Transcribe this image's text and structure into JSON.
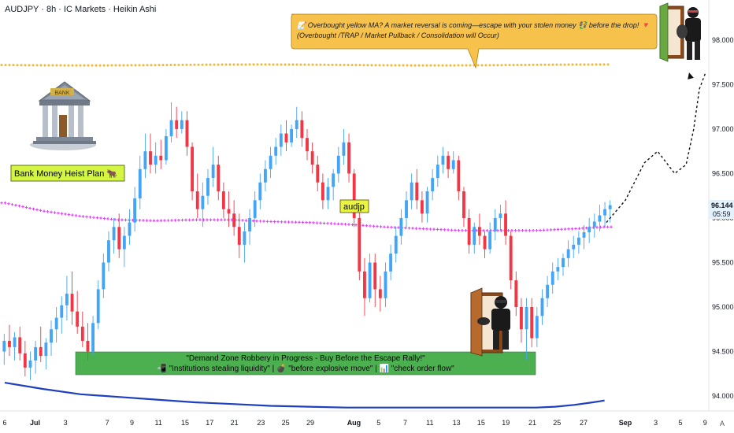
{
  "header": {
    "title": "AUDJPY · 8h · IC Markets · Heikin Ashi"
  },
  "colors": {
    "up": "#42a5f5",
    "down": "#f23645",
    "bubble_fill": "#f7c24c",
    "zone_fill": "#4caf50",
    "ma_yellow": "#f2b630",
    "ma_magenta": "#e040fb",
    "ma_blue": "#1e3fbf",
    "tag_fill": "#e9f542",
    "price_label": "#e3f2fd"
  },
  "annotations": {
    "bubble_line1": "📝 Overbought yellow MA? A market reversal is coming—escape with your stolen money 💱 before the drop! 🔻",
    "bubble_line2": "(Overbought /TRAP / Market Pullback / Consolidation will Occur)",
    "plan_label": "Bank Money Heist Plan 🐂",
    "tag_label": "audjp",
    "zone_line1": "\"Demand Zone Robbery in Progress - Buy Before the Escape Rally!\"",
    "zone_line2": "📲 \"Institutions stealing liquidity\" | 💣 \"before explosive move\" | 📊 \"check order flow\""
  },
  "price_label": {
    "price": "96.144",
    "countdown": "05:59"
  },
  "axis_corner": "A",
  "chart_data": {
    "type": "candlestick",
    "title": "AUDJPY · 8h · IC Markets · Heikin Ashi",
    "y_ticks": [
      "98.000",
      "97.500",
      "97.000",
      "96.500",
      "96.000",
      "95.500",
      "95.000",
      "94.500",
      "94.000"
    ],
    "y_tick_values": [
      98.0,
      97.5,
      97.0,
      96.5,
      96.0,
      95.5,
      95.0,
      94.5,
      94.0
    ],
    "ylim": [
      93.85,
      98.45
    ],
    "x_ticks": [
      {
        "label": "6",
        "day": 0,
        "bold": false
      },
      {
        "label": "Jul",
        "day": 1.6,
        "bold": true
      },
      {
        "label": "3",
        "day": 3.2,
        "bold": false
      },
      {
        "label": "7",
        "day": 5.4,
        "bold": false
      },
      {
        "label": "9",
        "day": 6.7,
        "bold": false
      },
      {
        "label": "11",
        "day": 8.1,
        "bold": false
      },
      {
        "label": "15",
        "day": 9.5,
        "bold": false
      },
      {
        "label": "17",
        "day": 10.8,
        "bold": false
      },
      {
        "label": "21",
        "day": 12.1,
        "bold": false
      },
      {
        "label": "23",
        "day": 13.5,
        "bold": false
      },
      {
        "label": "25",
        "day": 14.8,
        "bold": false
      },
      {
        "label": "29",
        "day": 16.1,
        "bold": false
      },
      {
        "label": "Aug",
        "day": 18.4,
        "bold": true
      },
      {
        "label": "5",
        "day": 19.7,
        "bold": false
      },
      {
        "label": "7",
        "day": 21.1,
        "bold": false
      },
      {
        "label": "11",
        "day": 22.4,
        "bold": false
      },
      {
        "label": "13",
        "day": 23.8,
        "bold": false
      },
      {
        "label": "15",
        "day": 25.1,
        "bold": false
      },
      {
        "label": "19",
        "day": 26.4,
        "bold": false
      },
      {
        "label": "21",
        "day": 27.8,
        "bold": false
      },
      {
        "label": "25",
        "day": 29.1,
        "bold": false
      },
      {
        "label": "27",
        "day": 30.5,
        "bold": false
      },
      {
        "label": "Sep",
        "day": 32.7,
        "bold": true
      },
      {
        "label": "3",
        "day": 34.3,
        "bold": false
      },
      {
        "label": "5",
        "day": 35.6,
        "bold": false
      },
      {
        "label": "9",
        "day": 36.9,
        "bold": false
      }
    ],
    "ma_yellow_level": 97.72,
    "ma_blue": [
      [
        0,
        94.15
      ],
      [
        2,
        94.08
      ],
      [
        4,
        94.02
      ],
      [
        6,
        93.99
      ],
      [
        8,
        93.96
      ],
      [
        10,
        93.93
      ],
      [
        12,
        93.91
      ],
      [
        14,
        93.89
      ],
      [
        16,
        93.88
      ],
      [
        18,
        93.87
      ],
      [
        20,
        93.87
      ],
      [
        22,
        93.87
      ],
      [
        24,
        93.87
      ],
      [
        26,
        93.87
      ],
      [
        28,
        93.87
      ],
      [
        29,
        93.88
      ],
      [
        30,
        93.9
      ],
      [
        31,
        93.93
      ],
      [
        31.6,
        93.95
      ]
    ],
    "ma_magenta": [
      [
        0,
        96.17
      ],
      [
        2,
        96.08
      ],
      [
        4,
        96.02
      ],
      [
        6,
        95.98
      ],
      [
        8,
        95.97
      ],
      [
        10,
        95.98
      ],
      [
        12,
        95.98
      ],
      [
        14,
        95.96
      ],
      [
        16,
        95.95
      ],
      [
        18,
        95.93
      ],
      [
        20,
        95.9
      ],
      [
        22,
        95.88
      ],
      [
        24,
        95.86
      ],
      [
        26,
        95.86
      ],
      [
        28,
        95.86
      ],
      [
        30,
        95.88
      ],
      [
        31.6,
        95.9
      ]
    ],
    "projection": [
      [
        31.7,
        95.95
      ],
      [
        32.7,
        96.2
      ],
      [
        33.7,
        96.62
      ],
      [
        34.4,
        96.75
      ],
      [
        35.3,
        96.5
      ],
      [
        35.9,
        96.6
      ],
      [
        36.3,
        97.0
      ],
      [
        36.6,
        97.45
      ],
      [
        36.9,
        97.62
      ]
    ],
    "candles": [
      {
        "o": 94.5,
        "h": 94.7,
        "l": 94.35,
        "c": 94.62
      },
      {
        "o": 94.62,
        "h": 94.8,
        "l": 94.45,
        "c": 94.55
      },
      {
        "o": 94.55,
        "h": 94.72,
        "l": 94.4,
        "c": 94.66
      },
      {
        "o": 94.66,
        "h": 94.78,
        "l": 94.4,
        "c": 94.48
      },
      {
        "o": 94.48,
        "h": 94.62,
        "l": 94.22,
        "c": 94.32
      },
      {
        "o": 94.32,
        "h": 94.5,
        "l": 94.18,
        "c": 94.4
      },
      {
        "o": 94.4,
        "h": 94.62,
        "l": 94.25,
        "c": 94.55
      },
      {
        "o": 94.55,
        "h": 94.78,
        "l": 94.38,
        "c": 94.45
      },
      {
        "o": 94.45,
        "h": 94.65,
        "l": 94.3,
        "c": 94.6
      },
      {
        "o": 94.6,
        "h": 94.85,
        "l": 94.45,
        "c": 94.75
      },
      {
        "o": 94.75,
        "h": 95.0,
        "l": 94.6,
        "c": 94.88
      },
      {
        "o": 94.88,
        "h": 95.12,
        "l": 94.7,
        "c": 95.02
      },
      {
        "o": 95.02,
        "h": 95.35,
        "l": 94.85,
        "c": 95.15
      },
      {
        "o": 95.15,
        "h": 95.4,
        "l": 94.8,
        "c": 94.95
      },
      {
        "o": 94.95,
        "h": 95.18,
        "l": 94.7,
        "c": 94.78
      },
      {
        "o": 94.78,
        "h": 94.95,
        "l": 94.55,
        "c": 94.62
      },
      {
        "o": 94.62,
        "h": 94.82,
        "l": 94.4,
        "c": 94.5
      },
      {
        "o": 94.5,
        "h": 94.9,
        "l": 94.45,
        "c": 94.82
      },
      {
        "o": 94.82,
        "h": 95.3,
        "l": 94.75,
        "c": 95.2
      },
      {
        "o": 95.2,
        "h": 95.6,
        "l": 95.1,
        "c": 95.5
      },
      {
        "o": 95.5,
        "h": 95.85,
        "l": 95.4,
        "c": 95.75
      },
      {
        "o": 95.75,
        "h": 96.0,
        "l": 95.6,
        "c": 95.9
      },
      {
        "o": 95.9,
        "h": 96.05,
        "l": 95.55,
        "c": 95.65
      },
      {
        "o": 95.65,
        "h": 95.9,
        "l": 95.45,
        "c": 95.8
      },
      {
        "o": 95.8,
        "h": 96.1,
        "l": 95.7,
        "c": 95.95
      },
      {
        "o": 95.95,
        "h": 96.35,
        "l": 95.85,
        "c": 96.22
      },
      {
        "o": 96.22,
        "h": 96.7,
        "l": 96.1,
        "c": 96.55
      },
      {
        "o": 96.55,
        "h": 96.95,
        "l": 96.45,
        "c": 96.75
      },
      {
        "o": 96.75,
        "h": 96.95,
        "l": 96.5,
        "c": 96.6
      },
      {
        "o": 96.6,
        "h": 96.85,
        "l": 96.5,
        "c": 96.7
      },
      {
        "o": 96.7,
        "h": 96.88,
        "l": 96.55,
        "c": 96.65
      },
      {
        "o": 96.65,
        "h": 97.0,
        "l": 96.6,
        "c": 96.92
      },
      {
        "o": 96.92,
        "h": 97.3,
        "l": 96.85,
        "c": 97.1
      },
      {
        "o": 97.1,
        "h": 97.25,
        "l": 96.9,
        "c": 97.0
      },
      {
        "o": 97.0,
        "h": 97.2,
        "l": 96.95,
        "c": 97.1
      },
      {
        "o": 97.1,
        "h": 97.2,
        "l": 96.7,
        "c": 96.8
      },
      {
        "o": 96.8,
        "h": 96.85,
        "l": 96.2,
        "c": 96.3
      },
      {
        "o": 96.3,
        "h": 96.5,
        "l": 96.0,
        "c": 96.1
      },
      {
        "o": 96.1,
        "h": 96.4,
        "l": 95.9,
        "c": 96.25
      },
      {
        "o": 96.25,
        "h": 96.55,
        "l": 96.15,
        "c": 96.45
      },
      {
        "o": 96.45,
        "h": 96.8,
        "l": 96.35,
        "c": 96.6
      },
      {
        "o": 96.6,
        "h": 96.7,
        "l": 96.2,
        "c": 96.3
      },
      {
        "o": 96.3,
        "h": 96.4,
        "l": 96.0,
        "c": 96.1
      },
      {
        "o": 96.1,
        "h": 96.3,
        "l": 95.9,
        "c": 96.05
      },
      {
        "o": 96.05,
        "h": 96.2,
        "l": 95.8,
        "c": 95.9
      },
      {
        "o": 95.9,
        "h": 96.05,
        "l": 95.55,
        "c": 95.7
      },
      {
        "o": 95.7,
        "h": 95.95,
        "l": 95.5,
        "c": 95.85
      },
      {
        "o": 95.85,
        "h": 96.1,
        "l": 95.7,
        "c": 96.0
      },
      {
        "o": 96.0,
        "h": 96.3,
        "l": 95.9,
        "c": 96.2
      },
      {
        "o": 96.2,
        "h": 96.5,
        "l": 96.1,
        "c": 96.4
      },
      {
        "o": 96.4,
        "h": 96.65,
        "l": 96.3,
        "c": 96.55
      },
      {
        "o": 96.55,
        "h": 96.8,
        "l": 96.45,
        "c": 96.7
      },
      {
        "o": 96.7,
        "h": 96.9,
        "l": 96.6,
        "c": 96.8
      },
      {
        "o": 96.8,
        "h": 97.05,
        "l": 96.7,
        "c": 96.95
      },
      {
        "o": 96.95,
        "h": 97.1,
        "l": 96.75,
        "c": 96.85
      },
      {
        "o": 96.85,
        "h": 97.05,
        "l": 96.8,
        "c": 97.0
      },
      {
        "o": 97.0,
        "h": 97.25,
        "l": 96.9,
        "c": 97.1
      },
      {
        "o": 97.1,
        "h": 97.2,
        "l": 96.8,
        "c": 96.9
      },
      {
        "o": 96.9,
        "h": 97.0,
        "l": 96.65,
        "c": 96.75
      },
      {
        "o": 96.75,
        "h": 96.85,
        "l": 96.5,
        "c": 96.6
      },
      {
        "o": 96.6,
        "h": 96.7,
        "l": 96.3,
        "c": 96.4
      },
      {
        "o": 96.4,
        "h": 96.5,
        "l": 96.1,
        "c": 96.2
      },
      {
        "o": 96.2,
        "h": 96.45,
        "l": 96.1,
        "c": 96.35
      },
      {
        "o": 96.35,
        "h": 96.55,
        "l": 96.2,
        "c": 96.5
      },
      {
        "o": 96.5,
        "h": 96.8,
        "l": 96.4,
        "c": 96.7
      },
      {
        "o": 96.7,
        "h": 97.0,
        "l": 96.6,
        "c": 96.85
      },
      {
        "o": 96.85,
        "h": 96.95,
        "l": 96.4,
        "c": 96.5
      },
      {
        "o": 96.5,
        "h": 96.55,
        "l": 95.9,
        "c": 96.0
      },
      {
        "o": 96.0,
        "h": 96.1,
        "l": 95.3,
        "c": 95.4
      },
      {
        "o": 95.4,
        "h": 95.55,
        "l": 94.9,
        "c": 95.1
      },
      {
        "o": 95.1,
        "h": 95.6,
        "l": 95.05,
        "c": 95.5
      },
      {
        "o": 95.5,
        "h": 95.6,
        "l": 95.0,
        "c": 95.2
      },
      {
        "o": 95.2,
        "h": 95.35,
        "l": 94.95,
        "c": 95.1
      },
      {
        "o": 95.1,
        "h": 95.5,
        "l": 95.0,
        "c": 95.4
      },
      {
        "o": 95.4,
        "h": 95.7,
        "l": 95.3,
        "c": 95.6
      },
      {
        "o": 95.6,
        "h": 95.9,
        "l": 95.5,
        "c": 95.8
      },
      {
        "o": 95.8,
        "h": 96.1,
        "l": 95.7,
        "c": 96.0
      },
      {
        "o": 96.0,
        "h": 96.3,
        "l": 95.9,
        "c": 96.2
      },
      {
        "o": 96.2,
        "h": 96.5,
        "l": 96.1,
        "c": 96.4
      },
      {
        "o": 96.4,
        "h": 96.55,
        "l": 96.1,
        "c": 96.2
      },
      {
        "o": 96.2,
        "h": 96.3,
        "l": 95.95,
        "c": 96.05
      },
      {
        "o": 96.05,
        "h": 96.35,
        "l": 95.95,
        "c": 96.3
      },
      {
        "o": 96.3,
        "h": 96.55,
        "l": 96.2,
        "c": 96.45
      },
      {
        "o": 96.45,
        "h": 96.7,
        "l": 96.35,
        "c": 96.6
      },
      {
        "o": 96.6,
        "h": 96.8,
        "l": 96.5,
        "c": 96.7
      },
      {
        "o": 96.7,
        "h": 96.75,
        "l": 96.45,
        "c": 96.55
      },
      {
        "o": 96.55,
        "h": 96.75,
        "l": 96.5,
        "c": 96.65
      },
      {
        "o": 96.65,
        "h": 96.7,
        "l": 96.2,
        "c": 96.3
      },
      {
        "o": 96.3,
        "h": 96.35,
        "l": 95.9,
        "c": 96.0
      },
      {
        "o": 96.0,
        "h": 96.1,
        "l": 95.6,
        "c": 95.7
      },
      {
        "o": 95.7,
        "h": 95.95,
        "l": 95.6,
        "c": 95.9
      },
      {
        "o": 95.9,
        "h": 96.05,
        "l": 95.7,
        "c": 95.8
      },
      {
        "o": 95.8,
        "h": 95.85,
        "l": 95.55,
        "c": 95.65
      },
      {
        "o": 95.65,
        "h": 95.95,
        "l": 95.6,
        "c": 95.85
      },
      {
        "o": 95.85,
        "h": 96.1,
        "l": 95.75,
        "c": 96.0
      },
      {
        "o": 96.0,
        "h": 96.15,
        "l": 95.85,
        "c": 96.05
      },
      {
        "o": 96.05,
        "h": 96.2,
        "l": 95.7,
        "c": 95.8
      },
      {
        "o": 95.8,
        "h": 95.85,
        "l": 95.2,
        "c": 95.3
      },
      {
        "o": 95.3,
        "h": 95.4,
        "l": 94.9,
        "c": 95.0
      },
      {
        "o": 95.0,
        "h": 95.1,
        "l": 94.6,
        "c": 94.75
      },
      {
        "o": 94.75,
        "h": 95.1,
        "l": 94.4,
        "c": 95.0
      },
      {
        "o": 95.0,
        "h": 95.1,
        "l": 94.55,
        "c": 94.65
      },
      {
        "o": 94.65,
        "h": 95.0,
        "l": 94.55,
        "c": 94.9
      },
      {
        "o": 94.9,
        "h": 95.2,
        "l": 94.8,
        "c": 95.1
      },
      {
        "o": 95.1,
        "h": 95.35,
        "l": 95.0,
        "c": 95.25
      },
      {
        "o": 95.25,
        "h": 95.5,
        "l": 95.15,
        "c": 95.4
      },
      {
        "o": 95.4,
        "h": 95.55,
        "l": 95.3,
        "c": 95.45
      },
      {
        "o": 95.45,
        "h": 95.6,
        "l": 95.35,
        "c": 95.55
      },
      {
        "o": 95.55,
        "h": 95.75,
        "l": 95.45,
        "c": 95.65
      },
      {
        "o": 95.65,
        "h": 95.8,
        "l": 95.55,
        "c": 95.7
      },
      {
        "o": 95.7,
        "h": 95.85,
        "l": 95.6,
        "c": 95.78
      },
      {
        "o": 95.78,
        "h": 95.92,
        "l": 95.65,
        "c": 95.84
      },
      {
        "o": 95.84,
        "h": 96.0,
        "l": 95.72,
        "c": 95.9
      },
      {
        "o": 95.9,
        "h": 96.05,
        "l": 95.78,
        "c": 95.96
      },
      {
        "o": 95.96,
        "h": 96.15,
        "l": 95.85,
        "c": 96.03
      },
      {
        "o": 96.03,
        "h": 96.18,
        "l": 95.9,
        "c": 96.1
      },
      {
        "o": 96.1,
        "h": 96.2,
        "l": 95.95,
        "c": 96.144
      }
    ]
  }
}
